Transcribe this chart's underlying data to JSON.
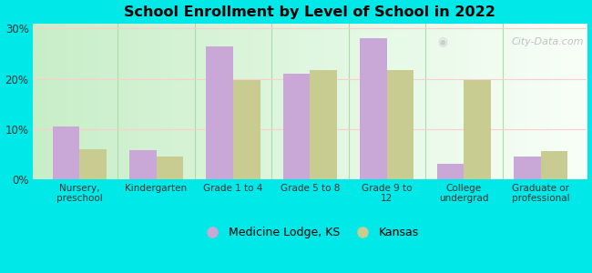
{
  "title": "School Enrollment by Level of School in 2022",
  "categories": [
    "Nursery,\npreschool",
    "Kindergarten",
    "Grade 1 to 4",
    "Grade 5 to 8",
    "Grade 9 to\n12",
    "College\nundergrad",
    "Graduate or\nprofessional"
  ],
  "medicine_lodge": [
    10.5,
    5.8,
    26.5,
    21.0,
    28.0,
    3.0,
    4.5
  ],
  "kansas": [
    6.0,
    4.5,
    19.8,
    21.8,
    21.8,
    19.8,
    5.5
  ],
  "medicine_lodge_color": "#c9a8d8",
  "kansas_color": "#c8cc90",
  "background_color": "#00e8e8",
  "ylim": [
    0,
    31
  ],
  "yticks": [
    0,
    10,
    20,
    30
  ],
  "ytick_labels": [
    "0%",
    "10%",
    "20%",
    "30%"
  ],
  "bar_width": 0.35,
  "legend_medicine": "Medicine Lodge, KS",
  "legend_kansas": "Kansas",
  "watermark": "City-Data.com",
  "grad_left_color": "#c8eec8",
  "grad_right_color": "#f8fff8"
}
